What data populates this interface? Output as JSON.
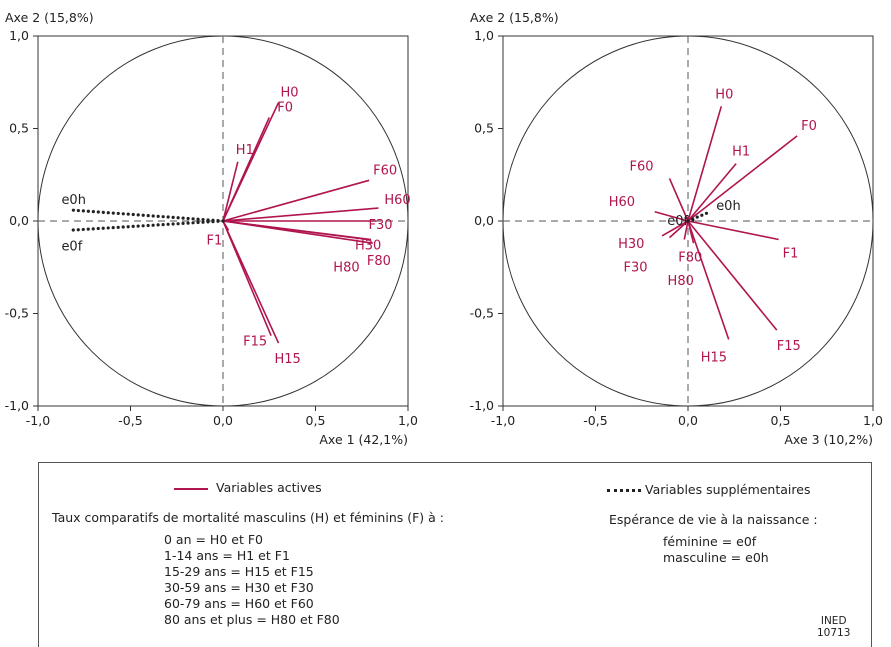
{
  "colors": {
    "active": "#b0154f",
    "supplementary": "#222222",
    "axis": "#333333",
    "guide": "#555555"
  },
  "chart_data": [
    {
      "type": "scatter",
      "subtype": "correlation-circle",
      "xlabel": "Axe 1 (42,1%)",
      "ylabel": "Axe 2 (15,8%)",
      "xlim": [
        -1,
        1
      ],
      "ylim": [
        -1,
        1
      ],
      "xticks": [
        "-1,0",
        "-0,5",
        "0,0",
        "0,5",
        "1,0"
      ],
      "yticks": [
        "-1,0",
        "-0,5",
        "0,0",
        "0,5",
        "1,0"
      ],
      "active_vectors": [
        {
          "label": "H0",
          "x": 0.3,
          "y": 0.64
        },
        {
          "label": "F0",
          "x": 0.25,
          "y": 0.56
        },
        {
          "label": "H1",
          "x": 0.08,
          "y": 0.32
        },
        {
          "label": "F60",
          "x": 0.79,
          "y": 0.22
        },
        {
          "label": "H60",
          "x": 0.84,
          "y": 0.07
        },
        {
          "label": "F30",
          "x": 0.83,
          "y": 0.0
        },
        {
          "label": "H30",
          "x": 0.8,
          "y": -0.1
        },
        {
          "label": "F80",
          "x": 0.81,
          "y": -0.12
        },
        {
          "label": "H80",
          "x": 0.78,
          "y": -0.1
        },
        {
          "label": "F1",
          "x": 0.03,
          "y": -0.05
        },
        {
          "label": "F15",
          "x": 0.26,
          "y": -0.62
        },
        {
          "label": "H15",
          "x": 0.3,
          "y": -0.66
        }
      ],
      "supplementary_vectors": [
        {
          "label": "e0h",
          "x": -0.83,
          "y": 0.06
        },
        {
          "label": "e0f",
          "x": -0.83,
          "y": -0.05
        }
      ]
    },
    {
      "type": "scatter",
      "subtype": "correlation-circle",
      "xlabel": "Axe 3 (10,2%)",
      "ylabel": "Axe 2 (15,8%)",
      "xlim": [
        -1,
        1
      ],
      "ylim": [
        -1,
        1
      ],
      "xticks": [
        "-1,0",
        "-0,5",
        "0,0",
        "0,5",
        "1,0"
      ],
      "yticks": [
        "-1,0",
        "-0,5",
        "0,0",
        "0,5",
        "1,0"
      ],
      "active_vectors": [
        {
          "label": "H0",
          "x": 0.18,
          "y": 0.62
        },
        {
          "label": "F0",
          "x": 0.59,
          "y": 0.46
        },
        {
          "label": "H1",
          "x": 0.26,
          "y": 0.31
        },
        {
          "label": "F60",
          "x": -0.1,
          "y": 0.23
        },
        {
          "label": "H60",
          "x": -0.18,
          "y": 0.05
        },
        {
          "label": "F1",
          "x": 0.49,
          "y": -0.1
        },
        {
          "label": "F15",
          "x": 0.48,
          "y": -0.59
        },
        {
          "label": "H15",
          "x": 0.22,
          "y": -0.64
        },
        {
          "label": "H30",
          "x": -0.14,
          "y": -0.08
        },
        {
          "label": "F30",
          "x": -0.1,
          "y": -0.09
        },
        {
          "label": "F80",
          "x": -0.02,
          "y": -0.1
        },
        {
          "label": "H80",
          "x": 0.03,
          "y": -0.12
        }
      ],
      "supplementary_vectors": [
        {
          "label": "e0h",
          "x": 0.12,
          "y": 0.05
        },
        {
          "label": "e0f",
          "x": 0.05,
          "y": 0.01
        }
      ]
    }
  ],
  "legend": {
    "active_label": "Variables actives",
    "supplementary_label": "Variables supplémentaires",
    "rates_heading": "Taux comparatifs de mortalité masculins (H) et féminins (F) à :",
    "rates": [
      "0 an =  H0 et F0",
      "1-14 ans = H1 et F1",
      "15-29 ans = H15 et F15",
      "30-59 ans = H30 et F30",
      "60-79 ans = H60 et F60",
      "80 ans et plus = H80 et F80"
    ],
    "life_heading": "Espérance de vie à la naissance :",
    "life": [
      "féminine = e0f",
      "masculine =  e0h"
    ]
  },
  "source": {
    "line1": "INED",
    "line2": "10713"
  }
}
